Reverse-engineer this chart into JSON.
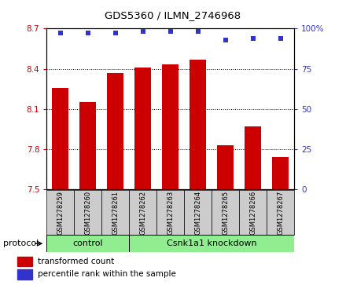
{
  "title": "GDS5360 / ILMN_2746968",
  "samples": [
    "GSM1278259",
    "GSM1278260",
    "GSM1278261",
    "GSM1278262",
    "GSM1278263",
    "GSM1278264",
    "GSM1278265",
    "GSM1278266",
    "GSM1278267"
  ],
  "bar_values": [
    8.26,
    8.15,
    8.37,
    8.41,
    8.43,
    8.47,
    7.83,
    7.97,
    7.74
  ],
  "percentile_values": [
    97,
    97,
    97,
    98,
    98,
    98,
    93,
    94,
    94
  ],
  "ylim_left": [
    7.5,
    8.7
  ],
  "ylim_right": [
    0,
    100
  ],
  "yticks_left": [
    7.5,
    7.8,
    8.1,
    8.4,
    8.7
  ],
  "yticks_right": [
    0,
    25,
    50,
    75,
    100
  ],
  "bar_color": "#cc0000",
  "dot_color": "#3333cc",
  "bar_width": 0.6,
  "control_samples": 3,
  "control_label": "control",
  "knockdown_label": "Csnk1a1 knockdown",
  "protocol_label": "protocol",
  "legend_bar_label": "transformed count",
  "legend_dot_label": "percentile rank within the sample",
  "tick_label_color_left": "#cc0000",
  "tick_label_color_right": "#3333cc",
  "xlabel_bg": "#cccccc",
  "group_bg": "#90ee90"
}
